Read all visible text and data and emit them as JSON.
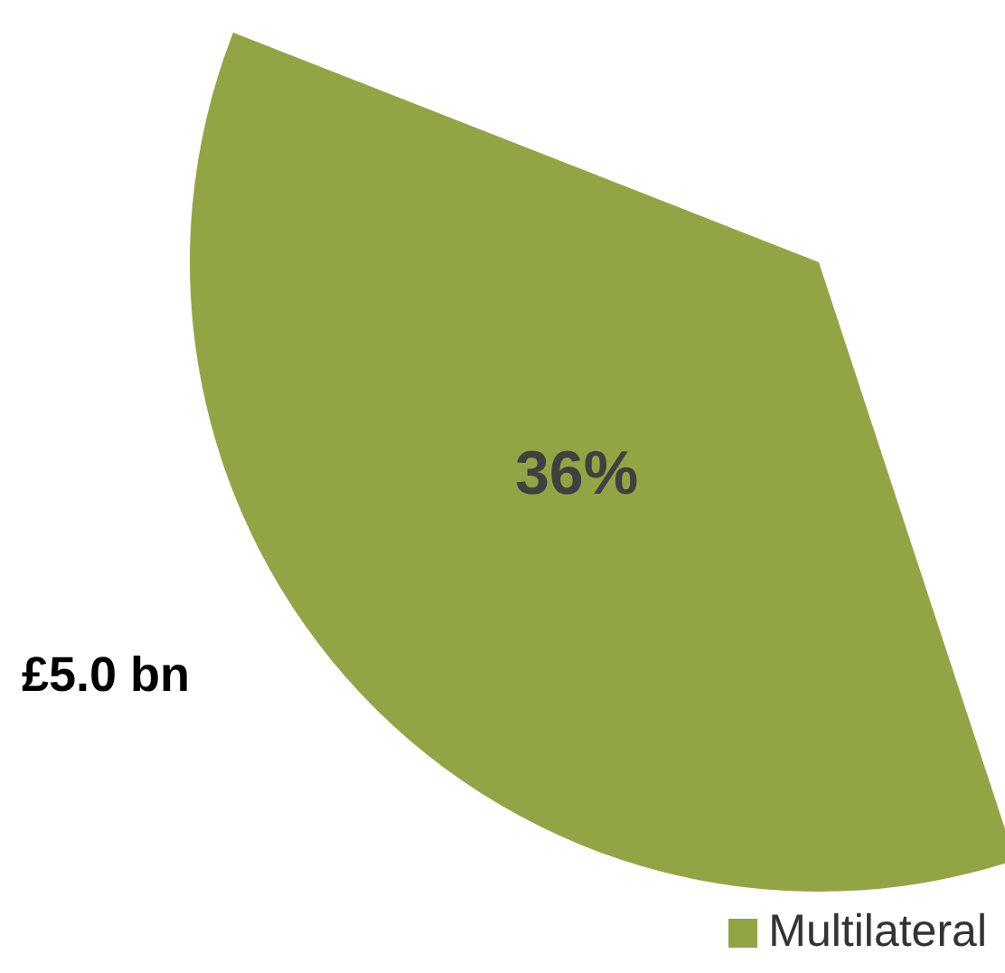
{
  "chart_data": {
    "type": "pie",
    "categories": [
      "Multilateral"
    ],
    "values": [
      36
    ],
    "colors": [
      "#92a545"
    ],
    "value_labels": [
      "36%"
    ],
    "annotations": [
      "£5.0 bn"
    ],
    "legend": "bottom right"
  }
}
